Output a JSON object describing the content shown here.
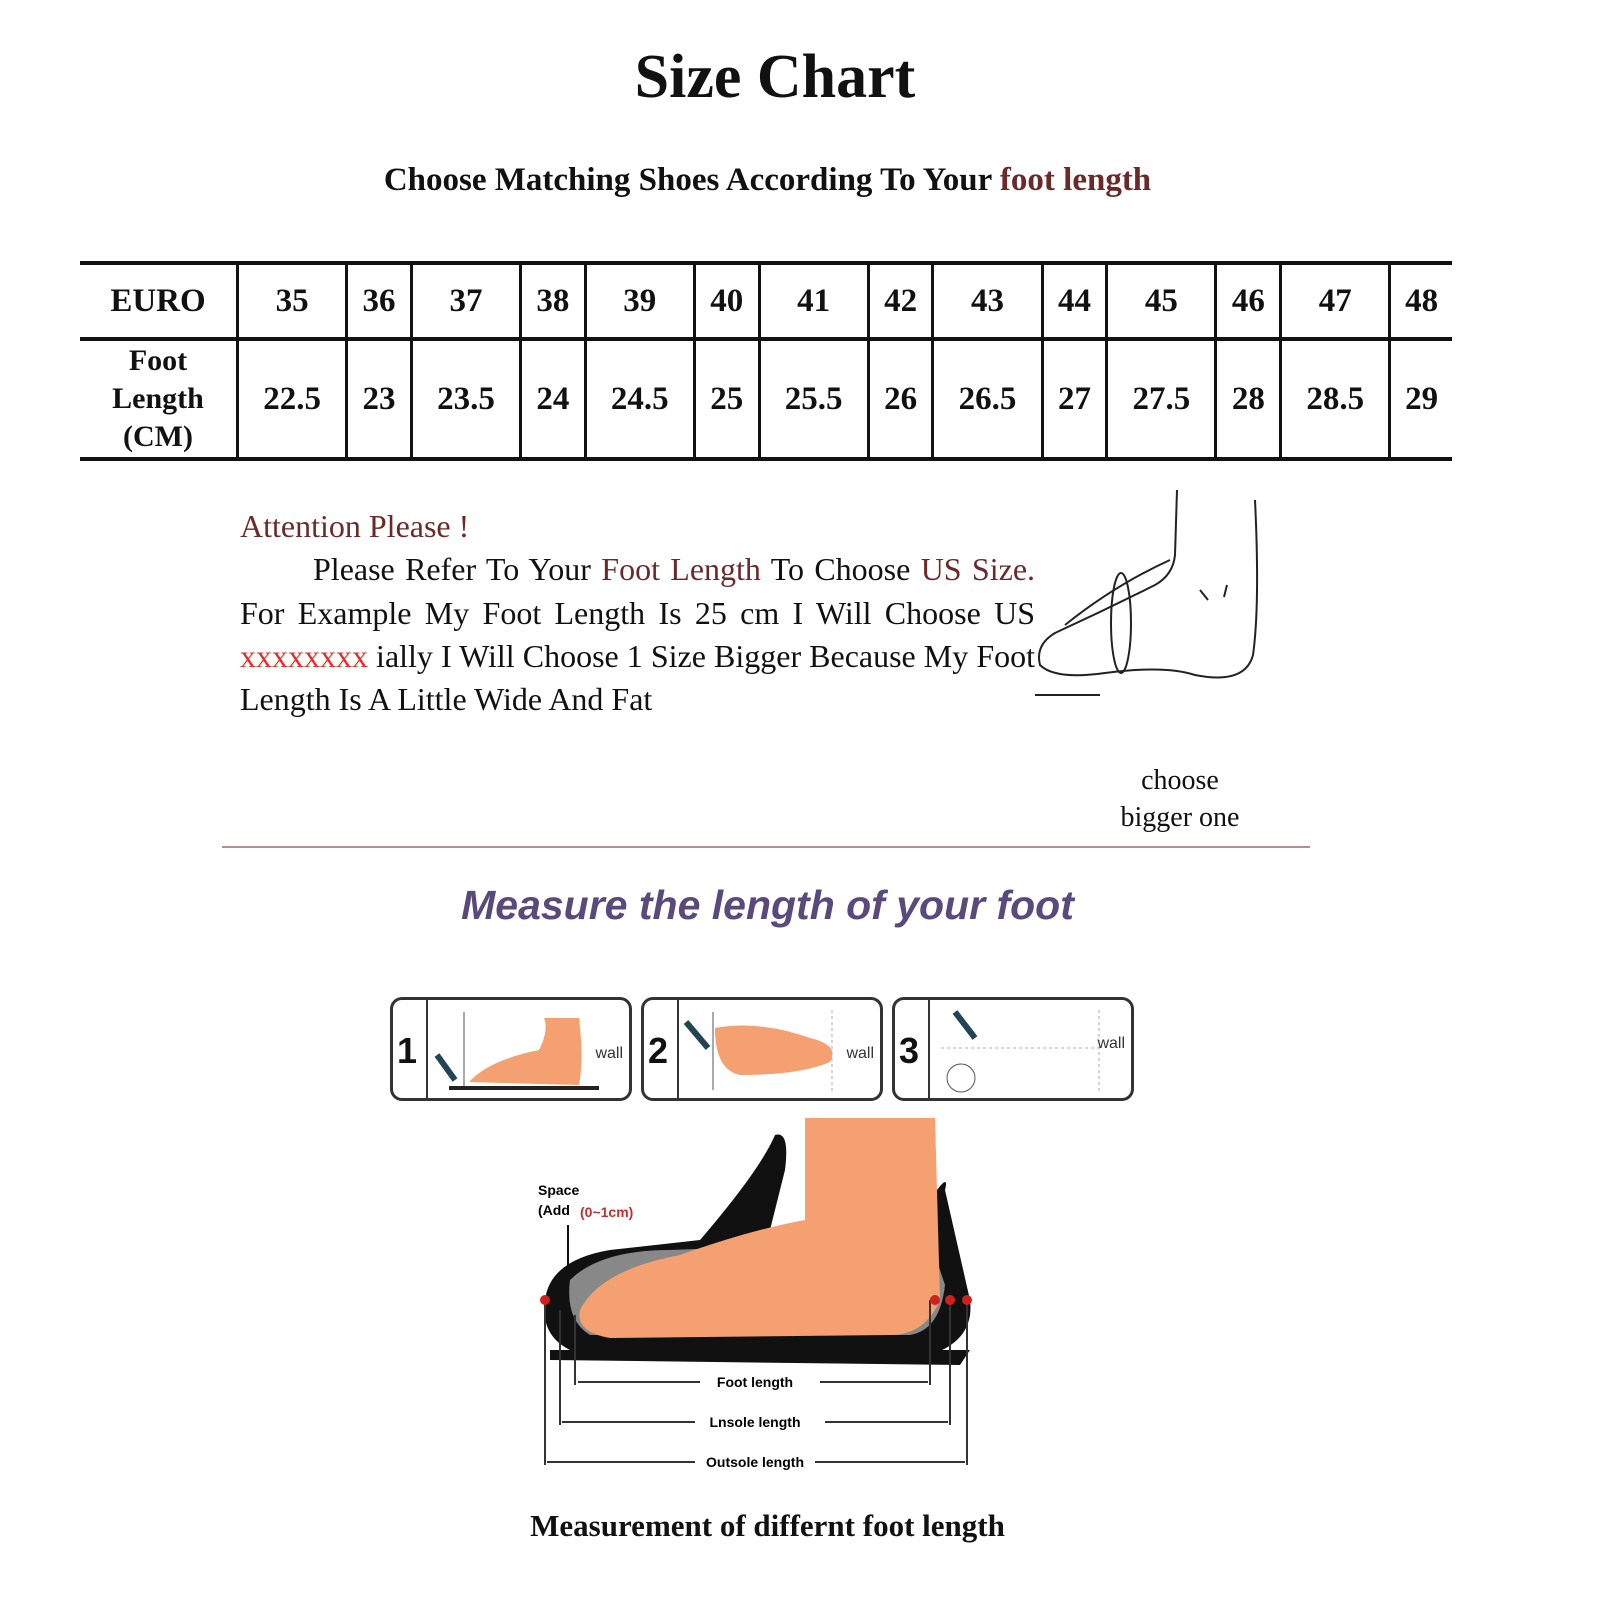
{
  "title": "Size Chart",
  "subtitle": {
    "prefix": "Choose Matching Shoes According To Your ",
    "highlight": "foot length"
  },
  "table": {
    "row_headers": [
      "EURO",
      "Foot Length (CM)"
    ],
    "euro": [
      "35",
      "36",
      "37",
      "38",
      "39",
      "40",
      "41",
      "42",
      "43",
      "44",
      "45",
      "46",
      "47",
      "48"
    ],
    "foot_length_cm": [
      "22.5",
      "23",
      "23.5",
      "24",
      "24.5",
      "25",
      "25.5",
      "26",
      "26.5",
      "27",
      "27.5",
      "28",
      "28.5",
      "29"
    ]
  },
  "attention": {
    "heading": "Attention Please !",
    "p1": "Please Refer To Your ",
    "p1_highlight": "Foot Length",
    "p2": " To Choose ",
    "p2_highlight": "US Size.",
    "p3": " For Example My Foot Length Is 25 cm I Will Choose US ",
    "redacted": "xxxxxxxx",
    "p4": " ially I Will Choose 1 Size Bigger Because My Foot Length Is A Little Wide And Fat"
  },
  "foot_sketch_caption": [
    "choose",
    "bigger one"
  ],
  "measure_heading": "Measure the length of your foot",
  "steps": [
    {
      "number": "1",
      "label": "wall"
    },
    {
      "number": "2",
      "label": "wall"
    },
    {
      "number": "3",
      "label": "wall"
    }
  ],
  "diagram": {
    "space_label": "Space",
    "space_add": "(Add",
    "space_range": "(0~1cm)",
    "lengths": [
      "Foot length",
      "Lnsole length",
      "Outsole length"
    ]
  },
  "caption": "Measurement of differnt foot length",
  "colors": {
    "accent_text": "#6b2a2a",
    "redacted": "#e03030",
    "heading_purple": "#5a4a7c",
    "foot": "#f4a070"
  }
}
